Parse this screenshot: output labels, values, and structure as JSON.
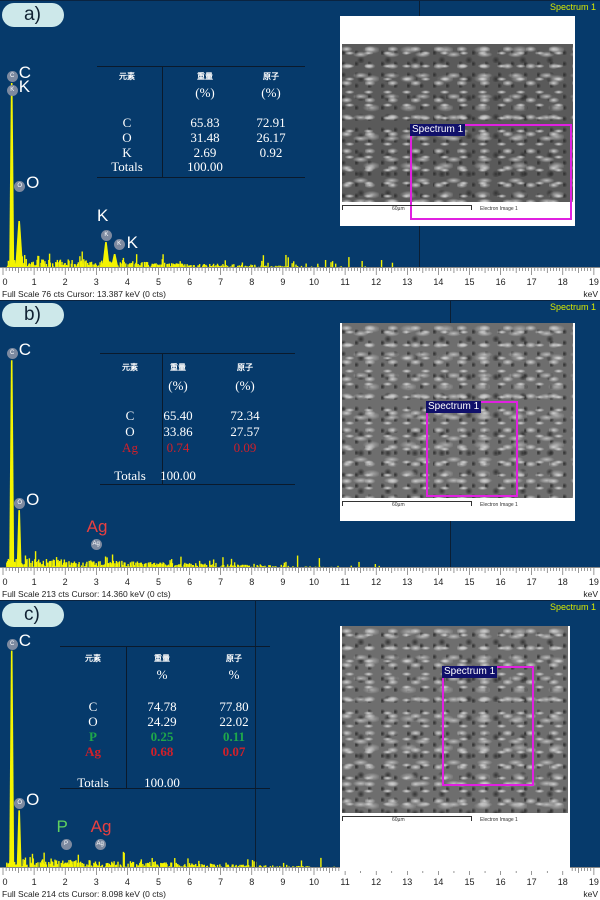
{
  "chart_data": [
    {
      "type": "area",
      "panel_label": "a)",
      "spectrum_title": "Spectrum 1",
      "xlabel": "keV",
      "x_ticks": [
        0,
        1,
        2,
        3,
        4,
        5,
        6,
        7,
        8,
        9,
        10,
        11,
        12,
        13,
        14,
        15,
        16,
        17,
        18,
        19
      ],
      "xlim": [
        0,
        19
      ],
      "full_scale_cts": 76,
      "status_text": "Full Scale 76 cts  Cursor: 13.387 keV (0 cts)",
      "cursor_keV": 13.387,
      "peaks": [
        {
          "element": "C",
          "energy_keV": 0.28,
          "counts": 62,
          "color": "#ffffff"
        },
        {
          "element": "K",
          "energy_keV": 0.28,
          "counts": 62,
          "color": "#ffffff",
          "label_only": true
        },
        {
          "element": "O",
          "energy_keV": 0.52,
          "counts": 16,
          "color": "#ffffff"
        },
        {
          "element": "K",
          "energy_keV": 3.31,
          "counts": 9,
          "color": "#ffffff"
        },
        {
          "element": "K",
          "energy_keV": 3.59,
          "counts": 5,
          "color": "#ffffff"
        }
      ],
      "table": {
        "headers": [
          "元素",
          "重量",
          "原子"
        ],
        "units": [
          "",
          "(%)",
          "(%)"
        ],
        "rows": [
          {
            "element": "C",
            "weight": "65.83",
            "atomic": "72.91",
            "color": "#ffffff"
          },
          {
            "element": "O",
            "weight": "31.48",
            "atomic": "26.17",
            "color": "#ffffff"
          },
          {
            "element": "K",
            "weight": "2.69",
            "atomic": "0.92",
            "color": "#ffffff"
          }
        ],
        "totals_label": "Totals",
        "totals_value": "100.00"
      },
      "image": {
        "box_label": "Spectrum 1",
        "scale": "60µm",
        "caption": "Electron Image 1"
      }
    },
    {
      "type": "area",
      "panel_label": "b)",
      "spectrum_title": "Spectrum 1",
      "xlabel": "keV",
      "x_ticks": [
        0,
        1,
        2,
        3,
        4,
        5,
        6,
        7,
        8,
        9,
        10,
        11,
        12,
        13,
        14,
        15,
        16,
        17,
        18,
        19
      ],
      "xlim": [
        0,
        19
      ],
      "full_scale_cts": 213,
      "status_text": "Full Scale 213 cts  Cursor: 14.360 keV (0 cts)",
      "cursor_keV": 14.36,
      "peaks": [
        {
          "element": "C",
          "energy_keV": 0.28,
          "counts": 195,
          "color": "#ffffff"
        },
        {
          "element": "O",
          "energy_keV": 0.52,
          "counts": 55,
          "color": "#ffffff"
        },
        {
          "element": "Ag",
          "energy_keV": 2.98,
          "counts": 4,
          "color": "#e84040"
        }
      ],
      "table": {
        "headers": [
          "元素",
          "重量",
          "原子"
        ],
        "units": [
          "",
          "(%)",
          "(%)"
        ],
        "rows": [
          {
            "element": "C",
            "weight": "65.40",
            "atomic": "72.34",
            "color": "#ffffff"
          },
          {
            "element": "O",
            "weight": "33.86",
            "atomic": "27.57",
            "color": "#ffffff"
          },
          {
            "element": "Ag",
            "weight": "0.74",
            "atomic": "0.09",
            "color": "#d0202a"
          }
        ],
        "totals_label": "Totals",
        "totals_value": "100.00"
      },
      "image": {
        "box_label": "Spectrum 1",
        "scale": "60µm",
        "caption": "Electron Image 1"
      }
    },
    {
      "type": "area",
      "panel_label": "c)",
      "spectrum_title": "Spectrum 1",
      "xlabel": "keV",
      "x_ticks": [
        0,
        1,
        2,
        3,
        4,
        5,
        6,
        7,
        8,
        9,
        10,
        11,
        12,
        13,
        14,
        15,
        16,
        17,
        18,
        19
      ],
      "xlim": [
        0,
        19
      ],
      "full_scale_cts": 214,
      "status_text": "Full Scale 214 cts  Cursor: 8.098 keV (0 cts)",
      "cursor_keV": 8.098,
      "peaks": [
        {
          "element": "C",
          "energy_keV": 0.28,
          "counts": 205,
          "color": "#ffffff"
        },
        {
          "element": "O",
          "energy_keV": 0.52,
          "counts": 55,
          "color": "#ffffff"
        },
        {
          "element": "P",
          "energy_keV": 2.01,
          "counts": 6,
          "color": "#5fd05f"
        },
        {
          "element": "Ag",
          "energy_keV": 2.98,
          "counts": 5,
          "color": "#e84040"
        }
      ],
      "table": {
        "headers": [
          "元素",
          "重量",
          "原子"
        ],
        "units": [
          "",
          "%",
          "%"
        ],
        "rows": [
          {
            "element": "C",
            "weight": "74.78",
            "atomic": "77.80",
            "color": "#ffffff"
          },
          {
            "element": "O",
            "weight": "24.29",
            "atomic": "22.02",
            "color": "#ffffff"
          },
          {
            "element": "P",
            "weight": "0.25",
            "atomic": "0.11",
            "color": "#1fa84a",
            "bold": true
          },
          {
            "element": "Ag",
            "weight": "0.68",
            "atomic": "0.07",
            "color": "#d0202a",
            "bold": true
          }
        ],
        "totals_label": "Totals",
        "totals_value": "100.00"
      },
      "image": {
        "box_label": "Spectrum 1",
        "scale": "60µm",
        "caption": "Electron Image 1"
      }
    }
  ]
}
